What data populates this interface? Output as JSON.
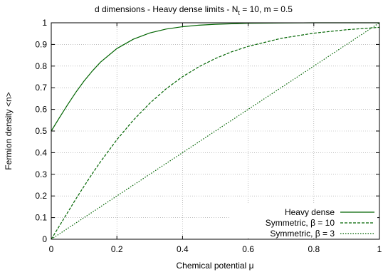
{
  "chart_data": {
    "type": "line",
    "title": "d dimensions - Heavy dense limits - N",
    "title_subscript": "t",
    "title_suffix": " = 10, m = 0.5",
    "xlabel": "Chemical potential μ",
    "ylabel": "Fermion density <n>",
    "xlim": [
      0,
      1
    ],
    "ylim": [
      0,
      1
    ],
    "x_ticks": [
      "0",
      "0.2",
      "0.4",
      "0.6",
      "0.8",
      "1"
    ],
    "y_ticks": [
      "0",
      "0.1",
      "0.2",
      "0.3",
      "0.4",
      "0.5",
      "0.6",
      "0.7",
      "0.8",
      "0.9",
      "1"
    ],
    "grid": true,
    "legend_position": "bottom-right",
    "line_color": "#006400",
    "series": [
      {
        "name": "Heavy dense",
        "style": "solid",
        "x": [
          0,
          0.025,
          0.05,
          0.075,
          0.1,
          0.125,
          0.15,
          0.2,
          0.25,
          0.3,
          0.35,
          0.4,
          0.45,
          0.5,
          0.6,
          0.7,
          0.8,
          0.9,
          1.0
        ],
        "y": [
          0.5,
          0.562,
          0.622,
          0.679,
          0.731,
          0.777,
          0.818,
          0.881,
          0.924,
          0.953,
          0.971,
          0.982,
          0.989,
          0.993,
          0.998,
          0.999,
          1.0,
          1.0,
          1.0
        ]
      },
      {
        "name": "Symmetric, β = 10",
        "style": "dashed",
        "x": [
          0,
          0.025,
          0.05,
          0.075,
          0.1,
          0.125,
          0.15,
          0.2,
          0.25,
          0.3,
          0.35,
          0.4,
          0.45,
          0.5,
          0.55,
          0.6,
          0.7,
          0.8,
          0.9,
          1.0
        ],
        "y": [
          0,
          0.062,
          0.124,
          0.186,
          0.245,
          0.303,
          0.358,
          0.46,
          0.55,
          0.628,
          0.695,
          0.751,
          0.797,
          0.835,
          0.866,
          0.891,
          0.928,
          0.952,
          0.968,
          0.979
        ]
      },
      {
        "name": "Symmetric, β = 3",
        "style": "dotted",
        "x": [
          0,
          0.05,
          0.1,
          0.15,
          0.2,
          0.25,
          0.3,
          0.35,
          0.4,
          0.45,
          0.5,
          0.55,
          0.6,
          0.65,
          0.7,
          0.75,
          0.8,
          0.85,
          0.9,
          0.95,
          1.0
        ],
        "y": [
          0,
          0.05,
          0.1,
          0.15,
          0.2,
          0.25,
          0.3,
          0.35,
          0.4,
          0.45,
          0.5,
          0.55,
          0.6,
          0.65,
          0.7,
          0.75,
          0.8,
          0.85,
          0.9,
          0.95,
          1.0
        ]
      }
    ]
  }
}
